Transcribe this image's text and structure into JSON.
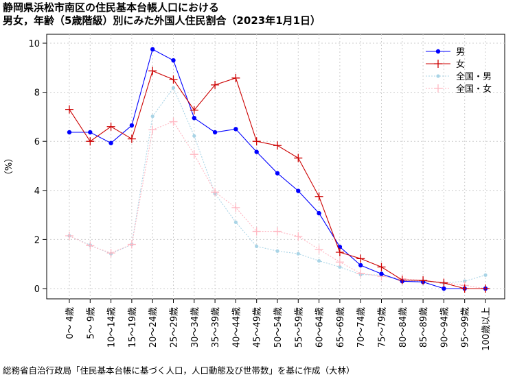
{
  "title_line1": "静岡県浜松市南区の住民基本台帳人口における",
  "title_line2": "男女，年齢（5歳階級）別にみた外国人住民割合（2023年1月1日）",
  "source": "総務省自治行政局「住民基本台帳に基づく人口，人口動態及び世帯数」を基に作成（大林）",
  "chart_data": {
    "type": "line",
    "ylabel": "（%）",
    "ylim": [
      0,
      10
    ],
    "yticks": [
      "0",
      "2",
      "4",
      "6",
      "8",
      "10"
    ],
    "grid": true,
    "legend_position": "top-right",
    "categories": [
      "0～ 4歳",
      "5～ 9歳",
      "10～14歳",
      "15～19歳",
      "20～24歳",
      "25～29歳",
      "30～34歳",
      "35～39歳",
      "40～44歳",
      "45～49歳",
      "50～54歳",
      "55～59歳",
      "60～64歳",
      "65～69歳",
      "70～74歳",
      "75～79歳",
      "80～84歳",
      "85～89歳",
      "90～94歳",
      "95～99歳",
      "100歳以上"
    ],
    "series": [
      {
        "name": "男",
        "color": "#0000ff",
        "marker": "dot",
        "line": "solid",
        "values": [
          6.37,
          6.37,
          5.93,
          6.65,
          9.75,
          9.3,
          6.95,
          6.37,
          6.5,
          5.57,
          4.7,
          3.98,
          3.07,
          1.7,
          0.95,
          0.6,
          0.3,
          0.27,
          0.0,
          0.0,
          0.0
        ]
      },
      {
        "name": "女",
        "color": "#cc0000",
        "marker": "plus",
        "line": "solid",
        "values": [
          7.3,
          6.0,
          6.6,
          6.1,
          8.87,
          8.52,
          7.27,
          8.3,
          8.58,
          6.0,
          5.83,
          5.32,
          3.75,
          1.48,
          1.22,
          0.88,
          0.35,
          0.33,
          0.23,
          0.0,
          0.0
        ]
      },
      {
        "name": "全国・男",
        "color": "#a9d4e6",
        "marker": "dot",
        "line": "dotted",
        "values": [
          2.15,
          1.77,
          1.42,
          1.8,
          7.02,
          8.18,
          6.22,
          3.87,
          2.7,
          1.72,
          1.53,
          1.42,
          1.13,
          0.88,
          0.57,
          0.55,
          0.33,
          0.3,
          0.23,
          0.3,
          0.55
        ]
      },
      {
        "name": "全国・女",
        "color": "#ffb6c1",
        "marker": "plus",
        "line": "dotted",
        "values": [
          2.15,
          1.75,
          1.45,
          1.8,
          6.47,
          6.8,
          5.47,
          3.93,
          3.3,
          2.33,
          2.33,
          2.13,
          1.6,
          1.08,
          0.62,
          0.5,
          0.4,
          0.33,
          0.25,
          0.13,
          0.0
        ]
      }
    ]
  }
}
